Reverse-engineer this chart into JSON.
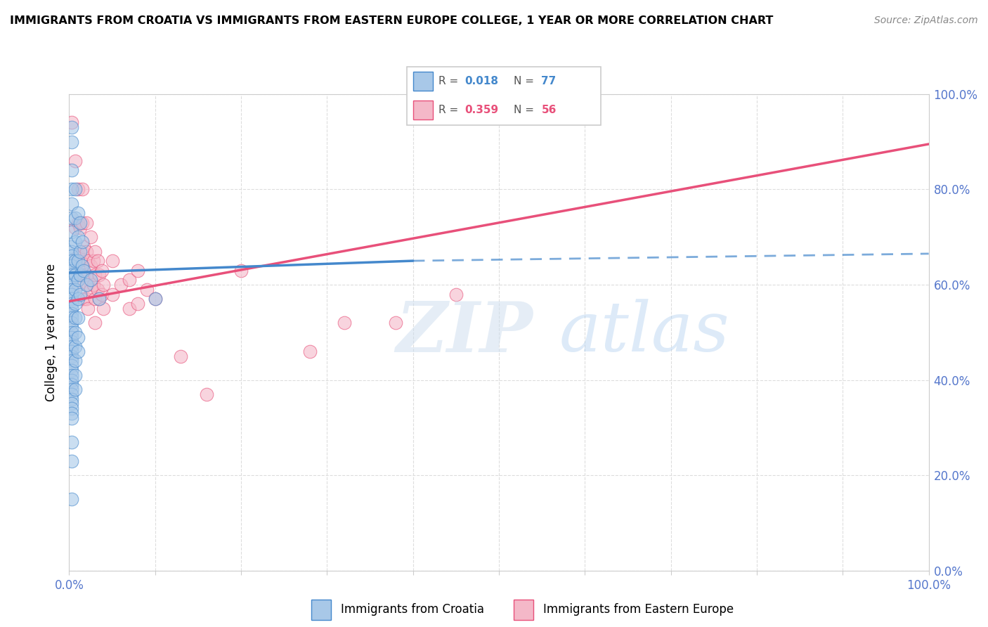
{
  "title": "IMMIGRANTS FROM CROATIA VS IMMIGRANTS FROM EASTERN EUROPE COLLEGE, 1 YEAR OR MORE CORRELATION CHART",
  "source": "Source: ZipAtlas.com",
  "ylabel": "College, 1 year or more",
  "xlim": [
    0,
    1.0
  ],
  "ylim": [
    0,
    1.0
  ],
  "color_blue": "#a8c8e8",
  "color_pink": "#f4b8c8",
  "color_blue_line": "#4488cc",
  "color_pink_line": "#e8507a",
  "color_axis": "#5577cc",
  "scatter_blue": [
    [
      0.003,
      0.93
    ],
    [
      0.003,
      0.9
    ],
    [
      0.003,
      0.84
    ],
    [
      0.003,
      0.8
    ],
    [
      0.003,
      0.77
    ],
    [
      0.003,
      0.74
    ],
    [
      0.003,
      0.71
    ],
    [
      0.003,
      0.68
    ],
    [
      0.003,
      0.67
    ],
    [
      0.003,
      0.66
    ],
    [
      0.003,
      0.65
    ],
    [
      0.003,
      0.64
    ],
    [
      0.003,
      0.63
    ],
    [
      0.003,
      0.62
    ],
    [
      0.003,
      0.61
    ],
    [
      0.003,
      0.6
    ],
    [
      0.003,
      0.59
    ],
    [
      0.003,
      0.58
    ],
    [
      0.003,
      0.57
    ],
    [
      0.003,
      0.56
    ],
    [
      0.003,
      0.55
    ],
    [
      0.003,
      0.54
    ],
    [
      0.003,
      0.53
    ],
    [
      0.003,
      0.52
    ],
    [
      0.003,
      0.51
    ],
    [
      0.003,
      0.5
    ],
    [
      0.003,
      0.49
    ],
    [
      0.003,
      0.48
    ],
    [
      0.003,
      0.47
    ],
    [
      0.003,
      0.46
    ],
    [
      0.003,
      0.45
    ],
    [
      0.003,
      0.44
    ],
    [
      0.003,
      0.43
    ],
    [
      0.003,
      0.42
    ],
    [
      0.003,
      0.41
    ],
    [
      0.003,
      0.4
    ],
    [
      0.003,
      0.39
    ],
    [
      0.003,
      0.38
    ],
    [
      0.003,
      0.37
    ],
    [
      0.003,
      0.36
    ],
    [
      0.003,
      0.35
    ],
    [
      0.003,
      0.34
    ],
    [
      0.003,
      0.33
    ],
    [
      0.003,
      0.32
    ],
    [
      0.007,
      0.8
    ],
    [
      0.007,
      0.74
    ],
    [
      0.007,
      0.69
    ],
    [
      0.007,
      0.65
    ],
    [
      0.007,
      0.62
    ],
    [
      0.007,
      0.59
    ],
    [
      0.007,
      0.56
    ],
    [
      0.007,
      0.53
    ],
    [
      0.007,
      0.5
    ],
    [
      0.007,
      0.47
    ],
    [
      0.007,
      0.44
    ],
    [
      0.007,
      0.41
    ],
    [
      0.007,
      0.38
    ],
    [
      0.01,
      0.75
    ],
    [
      0.01,
      0.7
    ],
    [
      0.01,
      0.65
    ],
    [
      0.01,
      0.61
    ],
    [
      0.01,
      0.57
    ],
    [
      0.01,
      0.53
    ],
    [
      0.01,
      0.49
    ],
    [
      0.01,
      0.46
    ],
    [
      0.013,
      0.73
    ],
    [
      0.013,
      0.67
    ],
    [
      0.013,
      0.62
    ],
    [
      0.013,
      0.58
    ],
    [
      0.015,
      0.69
    ],
    [
      0.015,
      0.64
    ],
    [
      0.017,
      0.63
    ],
    [
      0.02,
      0.6
    ],
    [
      0.025,
      0.61
    ],
    [
      0.035,
      0.57
    ],
    [
      0.003,
      0.27
    ],
    [
      0.003,
      0.23
    ],
    [
      0.003,
      0.15
    ],
    [
      0.1,
      0.57
    ]
  ],
  "scatter_pink": [
    [
      0.003,
      0.94
    ],
    [
      0.007,
      0.86
    ],
    [
      0.007,
      0.72
    ],
    [
      0.01,
      0.8
    ],
    [
      0.01,
      0.73
    ],
    [
      0.01,
      0.66
    ],
    [
      0.01,
      0.6
    ],
    [
      0.013,
      0.72
    ],
    [
      0.013,
      0.65
    ],
    [
      0.015,
      0.8
    ],
    [
      0.015,
      0.73
    ],
    [
      0.015,
      0.67
    ],
    [
      0.015,
      0.62
    ],
    [
      0.017,
      0.68
    ],
    [
      0.017,
      0.62
    ],
    [
      0.017,
      0.57
    ],
    [
      0.02,
      0.73
    ],
    [
      0.02,
      0.67
    ],
    [
      0.02,
      0.62
    ],
    [
      0.02,
      0.57
    ],
    [
      0.022,
      0.65
    ],
    [
      0.022,
      0.6
    ],
    [
      0.022,
      0.55
    ],
    [
      0.025,
      0.7
    ],
    [
      0.025,
      0.64
    ],
    [
      0.025,
      0.59
    ],
    [
      0.028,
      0.65
    ],
    [
      0.028,
      0.6
    ],
    [
      0.03,
      0.67
    ],
    [
      0.03,
      0.62
    ],
    [
      0.03,
      0.57
    ],
    [
      0.03,
      0.52
    ],
    [
      0.033,
      0.65
    ],
    [
      0.033,
      0.59
    ],
    [
      0.035,
      0.62
    ],
    [
      0.035,
      0.57
    ],
    [
      0.038,
      0.63
    ],
    [
      0.038,
      0.58
    ],
    [
      0.04,
      0.6
    ],
    [
      0.04,
      0.55
    ],
    [
      0.05,
      0.65
    ],
    [
      0.05,
      0.58
    ],
    [
      0.06,
      0.6
    ],
    [
      0.07,
      0.61
    ],
    [
      0.07,
      0.55
    ],
    [
      0.08,
      0.63
    ],
    [
      0.08,
      0.56
    ],
    [
      0.09,
      0.59
    ],
    [
      0.1,
      0.57
    ],
    [
      0.13,
      0.45
    ],
    [
      0.16,
      0.37
    ],
    [
      0.2,
      0.63
    ],
    [
      0.28,
      0.46
    ],
    [
      0.32,
      0.52
    ],
    [
      0.38,
      0.52
    ],
    [
      0.45,
      0.58
    ]
  ],
  "blue_line_solid": [
    [
      0.0,
      0.625
    ],
    [
      0.4,
      0.65
    ]
  ],
  "blue_line_dash": [
    [
      0.4,
      0.65
    ],
    [
      1.0,
      0.665
    ]
  ],
  "pink_line": [
    [
      0.0,
      0.565
    ],
    [
      1.0,
      0.895
    ]
  ],
  "watermark_zip": "ZIP",
  "watermark_atlas": "atlas"
}
